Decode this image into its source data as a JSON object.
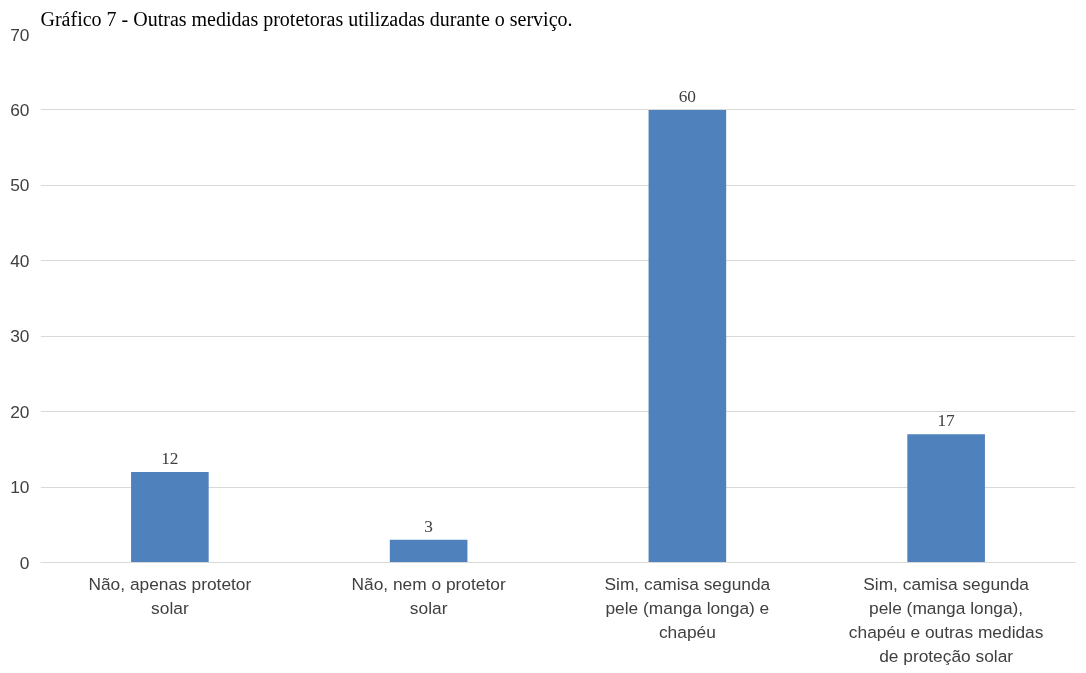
{
  "chart_data": {
    "type": "bar",
    "title": "Gráfico 7 - Outras medidas protetoras utilizadas durante o serviço.",
    "categories": [
      "Não, apenas protetor solar",
      "Não, nem o protetor solar",
      "Sim, camisa segunda pele (manga longa) e chapéu",
      "Sim, camisa segunda pele (manga longa), chapéu e outras medidas de proteção solar"
    ],
    "values": [
      12,
      3,
      60,
      17
    ],
    "color": "#4f81bd",
    "ylim": [
      0,
      70
    ],
    "yticks": [
      0,
      10,
      20,
      30,
      40,
      50,
      60,
      70
    ],
    "grid": "y",
    "data_labels": true
  }
}
